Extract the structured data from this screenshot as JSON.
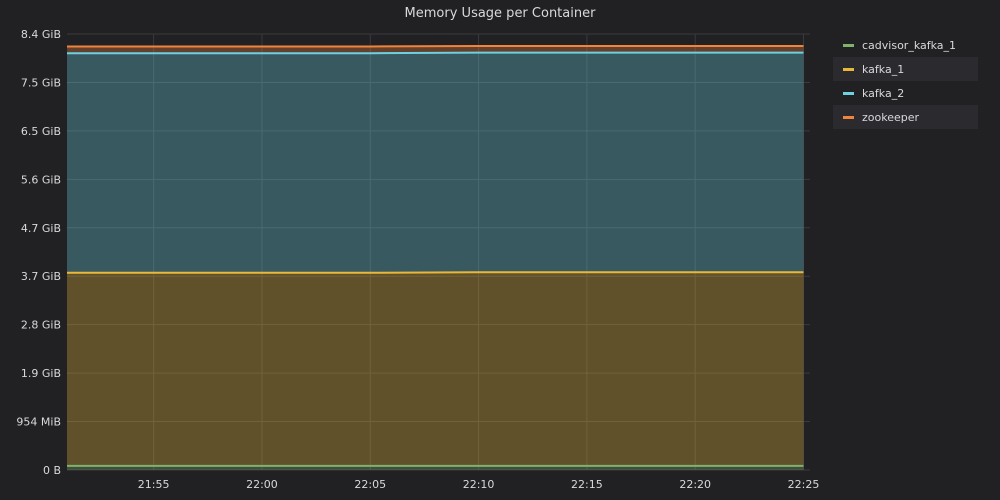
{
  "panel": {
    "title": "Memory Usage per Container"
  },
  "legend": {
    "items": [
      {
        "label": "cadvisor_kafka_1",
        "color": "#7eb26d"
      },
      {
        "label": "kafka_1",
        "color": "#eab839"
      },
      {
        "label": "kafka_2",
        "color": "#6ed0e0"
      },
      {
        "label": "zookeeper",
        "color": "#ef843c"
      }
    ]
  },
  "chart_data": {
    "type": "area",
    "title": "Memory Usage per Container",
    "stacked": true,
    "y_unit": "GiB",
    "y_ticks": [
      "0 B",
      "954 MiB",
      "1.9 GiB",
      "2.8 GiB",
      "3.7 GiB",
      "4.7 GiB",
      "5.6 GiB",
      "6.5 GiB",
      "7.5 GiB",
      "8.4 GiB"
    ],
    "ylim": [
      0,
      8.4
    ],
    "x_ticks": [
      "21:55",
      "22:00",
      "22:05",
      "22:10",
      "22:15",
      "22:20",
      "22:25"
    ],
    "x": [
      "21:51",
      "21:55",
      "22:00",
      "22:05",
      "22:10",
      "22:15",
      "22:20",
      "22:25"
    ],
    "grid": true,
    "legend_position": "right",
    "series": [
      {
        "name": "cadvisor_kafka_1",
        "color": "#7eb26d",
        "values": [
          0.08,
          0.08,
          0.08,
          0.08,
          0.08,
          0.08,
          0.08,
          0.08
        ]
      },
      {
        "name": "kafka_1",
        "color": "#eab839",
        "values": [
          3.72,
          3.72,
          3.72,
          3.72,
          3.73,
          3.73,
          3.73,
          3.73
        ]
      },
      {
        "name": "kafka_2",
        "color": "#6ed0e0",
        "values": [
          4.23,
          4.23,
          4.23,
          4.23,
          4.23,
          4.23,
          4.23,
          4.23
        ]
      },
      {
        "name": "zookeeper",
        "color": "#ef843c",
        "values": [
          0.13,
          0.13,
          0.13,
          0.13,
          0.13,
          0.13,
          0.13,
          0.13
        ]
      }
    ]
  }
}
